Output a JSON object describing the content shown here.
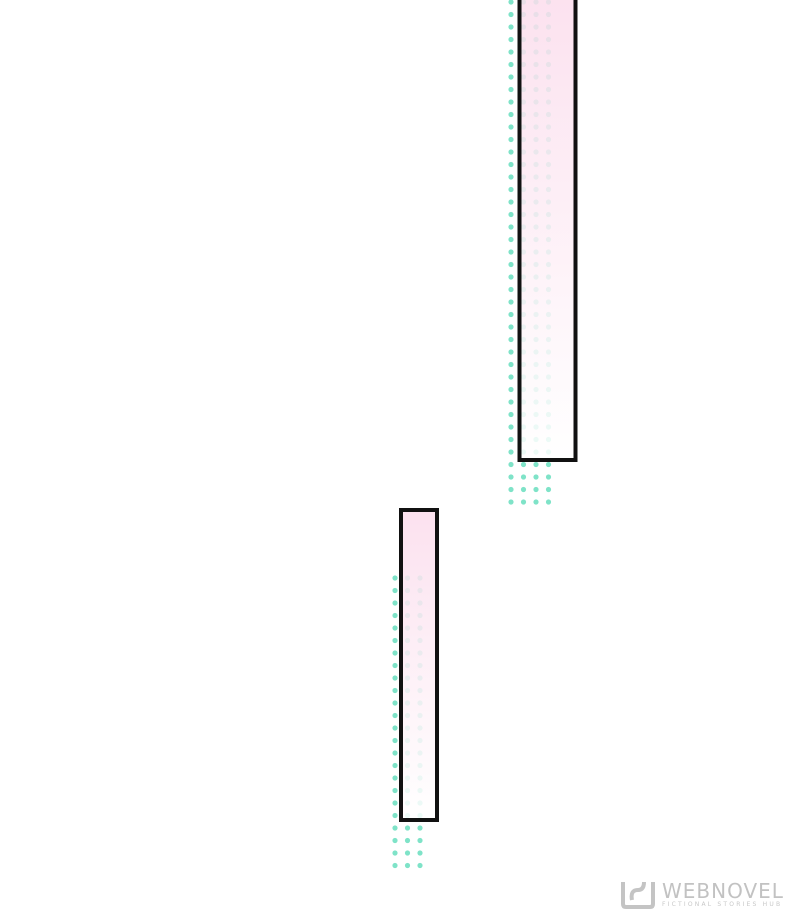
{
  "panel": {
    "colors": {
      "outline": "#111111",
      "fill_top": "#fbdcec",
      "fill_bottom": "#ffffff",
      "dots": "#7fe3c8"
    }
  },
  "watermark": {
    "title": "WEBNOVEL",
    "subtitle": "FICTIONAL STORIES HUB",
    "icon": "webnovel-logo-icon"
  }
}
